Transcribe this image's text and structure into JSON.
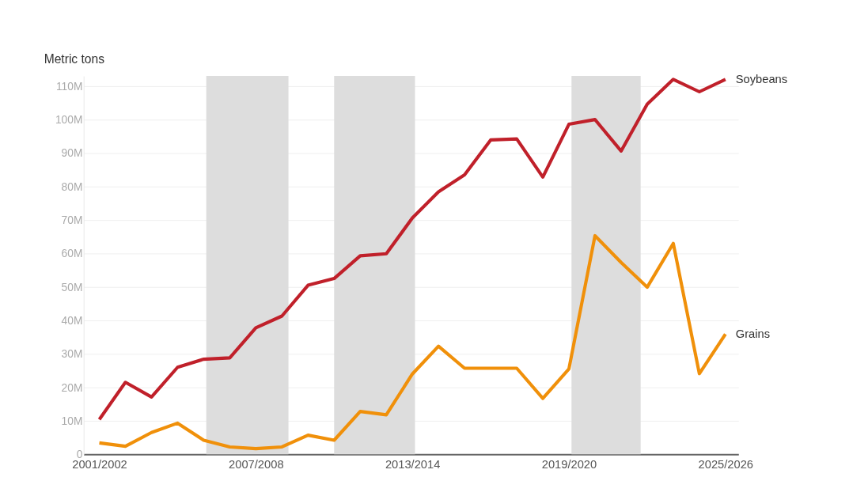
{
  "chart_data": {
    "type": "line",
    "ylabel": "Metric tons",
    "categories": [
      "2001/2002",
      null,
      null,
      null,
      null,
      null,
      "2007/2008",
      null,
      null,
      null,
      null,
      null,
      "2013/2014",
      null,
      null,
      null,
      null,
      null,
      "2019/2020",
      null,
      null,
      null,
      null,
      null,
      "2025/2026"
    ],
    "series": [
      {
        "name": "Soybeans",
        "color": "#c0202a",
        "values": [
          10.4,
          21.5,
          17.1,
          26.0,
          28.4,
          28.8,
          37.8,
          41.3,
          50.5,
          52.5,
          59.3,
          59.9,
          70.6,
          78.4,
          83.5,
          93.9,
          94.2,
          82.8,
          98.6,
          100.0,
          90.6,
          104.6,
          112,
          108.3,
          112
        ]
      },
      {
        "name": "Grains",
        "color": "#f0900a",
        "values": [
          3.4,
          2.4,
          6.5,
          9.3,
          4.2,
          2.2,
          1.7,
          2.2,
          5.7,
          4.2,
          12.8,
          11.8,
          24.0,
          32.3,
          25.7,
          25.7,
          25.7,
          16.7,
          25.5,
          65.3,
          57.3,
          49.9,
          63.0,
          24.1,
          35.9
        ]
      }
    ],
    "ylim": [
      0,
      113
    ],
    "yticks": [
      0,
      {
        "value": 10,
        "label": "10M"
      },
      {
        "value": 20,
        "label": "20M"
      },
      {
        "value": 30,
        "label": "30M"
      },
      {
        "value": 40,
        "label": "40M"
      },
      {
        "value": 50,
        "label": "50M"
      },
      {
        "value": 60,
        "label": "60M"
      },
      {
        "value": 70,
        "label": "70M"
      },
      {
        "value": 80,
        "label": "80M"
      },
      {
        "value": 90,
        "label": "90M"
      },
      {
        "value": 100,
        "label": "100M"
      },
      {
        "value": 110,
        "label": "110M"
      }
    ],
    "grid": "y",
    "line_style": "solid",
    "marker": "none"
  }
}
